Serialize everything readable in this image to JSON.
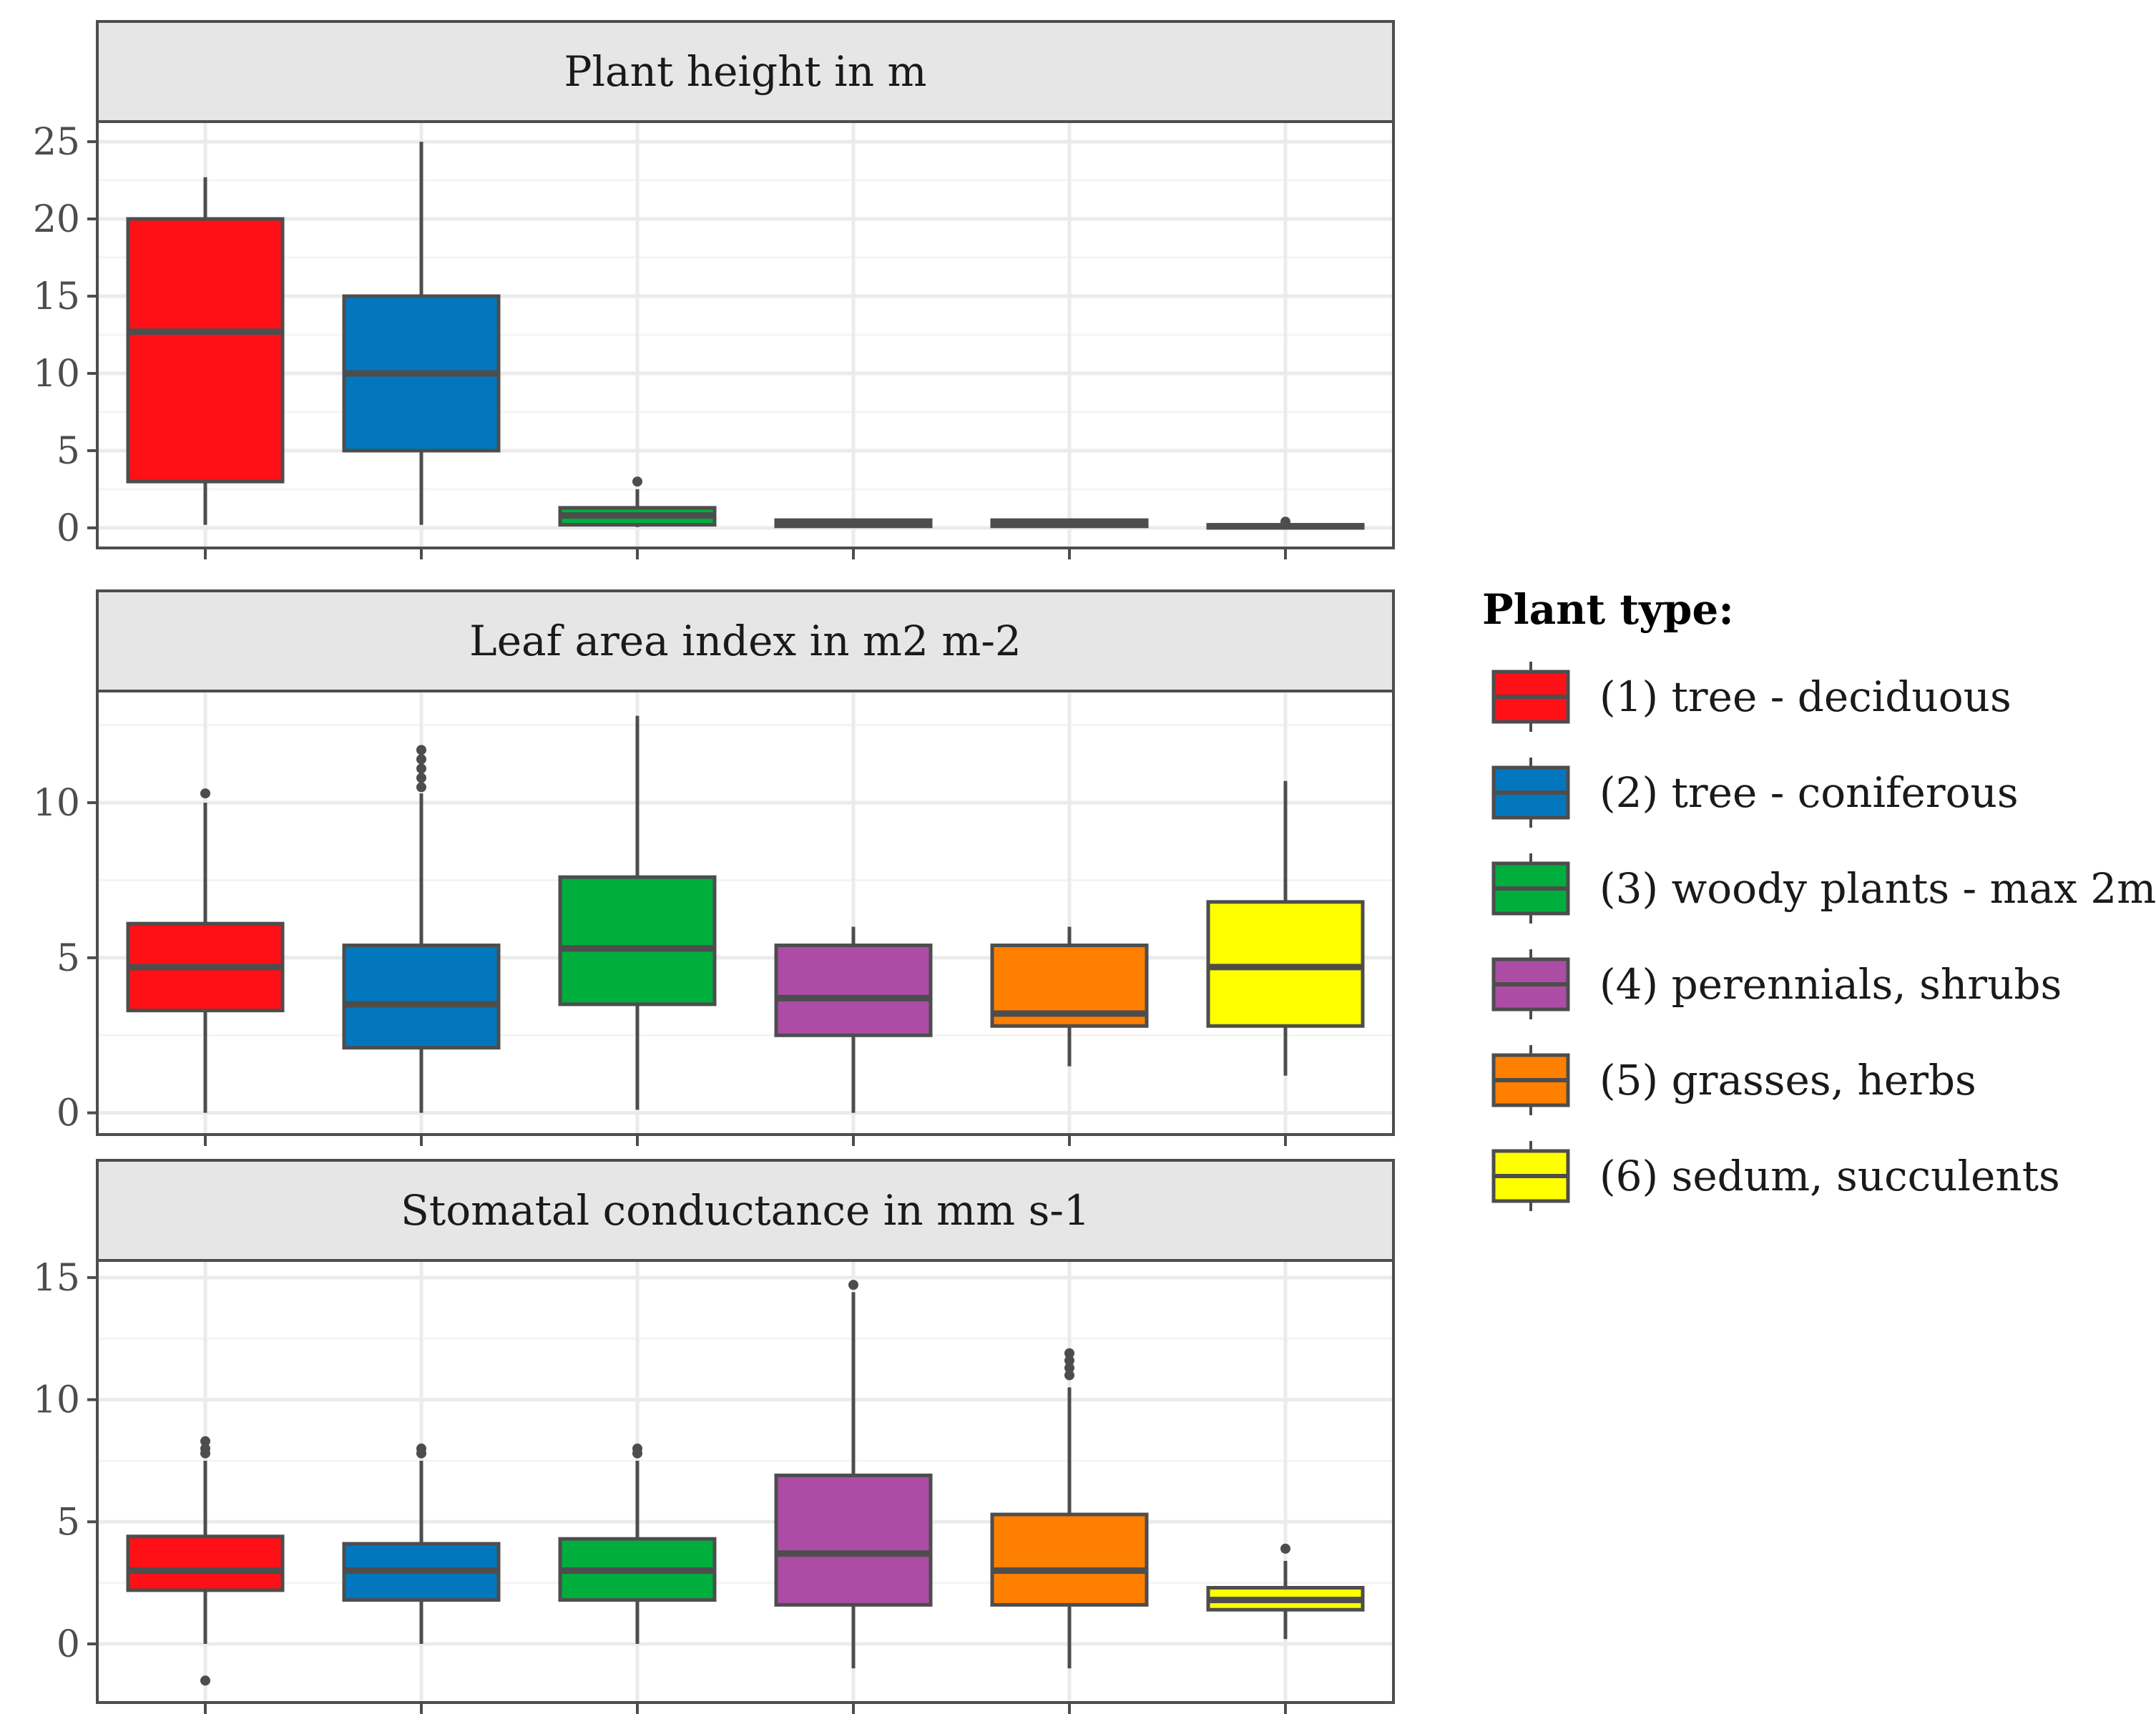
{
  "chart_data": {
    "type": "boxplot",
    "categories": [
      "(1) tree - deciduous",
      "(2) tree - coniferous",
      "(3) woody plants - max 2m",
      "(4) perennials, shrubs",
      "(5) grasses, herbs",
      "(6) sedum, succulents"
    ],
    "colors": [
      "#ff1016",
      "#0377bd",
      "#00ae3e",
      "#ac4ca5",
      "#ff7f00",
      "#ffff00"
    ],
    "legend": {
      "title": "Plant type:",
      "position": "right",
      "entries": [
        "(1) tree - deciduous",
        "(2) tree - coniferous",
        "(3) woody plants - max 2m",
        "(4) perennials, shrubs",
        "(5) grasses, herbs",
        "(6) sedum, succulents"
      ]
    },
    "panels": [
      {
        "title": "Plant height in m",
        "ylim": [
          -1.3,
          26.3
        ],
        "yticks": [
          0,
          5,
          10,
          15,
          20,
          25
        ],
        "boxes": [
          {
            "min": 0.2,
            "q1": 3,
            "median": 12.7,
            "q3": 20,
            "max": 22.7,
            "outliers": []
          },
          {
            "min": 0.2,
            "q1": 5,
            "median": 10,
            "q3": 15,
            "max": 25,
            "outliers": []
          },
          {
            "min": 0.05,
            "q1": 0.2,
            "median": 0.8,
            "q3": 1.3,
            "max": 2.5,
            "outliers": [
              3
            ]
          },
          {
            "min": 0.05,
            "q1": 0.1,
            "median": 0.3,
            "q3": 0.5,
            "max": 0.6,
            "outliers": []
          },
          {
            "min": 0.05,
            "q1": 0.1,
            "median": 0.3,
            "q3": 0.5,
            "max": 0.6,
            "outliers": []
          },
          {
            "min": 0.0,
            "q1": 0.0,
            "median": 0.1,
            "q3": 0.2,
            "max": 0.3,
            "outliers": [
              0.4
            ]
          }
        ]
      },
      {
        "title": "Leaf area index in m2 m-2",
        "ylim": [
          -0.7,
          13.6
        ],
        "yticks": [
          0,
          5,
          10
        ],
        "boxes": [
          {
            "min": 0,
            "q1": 3.3,
            "median": 4.7,
            "q3": 6.1,
            "max": 10,
            "outliers": [
              10.3
            ]
          },
          {
            "min": 0,
            "q1": 2.1,
            "median": 3.5,
            "q3": 5.4,
            "max": 10.3,
            "outliers": [
              10.5,
              10.8,
              11.1,
              11.4,
              11.7
            ]
          },
          {
            "min": 0.1,
            "q1": 3.5,
            "median": 5.3,
            "q3": 7.6,
            "max": 12.8,
            "outliers": []
          },
          {
            "min": 0,
            "q1": 2.5,
            "median": 3.7,
            "q3": 5.4,
            "max": 6,
            "outliers": []
          },
          {
            "min": 1.5,
            "q1": 2.8,
            "median": 3.2,
            "q3": 5.4,
            "max": 6,
            "outliers": []
          },
          {
            "min": 1.2,
            "q1": 2.8,
            "median": 4.7,
            "q3": 6.8,
            "max": 10.7,
            "outliers": []
          }
        ]
      },
      {
        "title": "Stomatal conductance in mm s-1",
        "ylim": [
          -2.4,
          15.7
        ],
        "yticks": [
          0,
          5,
          10,
          15
        ],
        "boxes": [
          {
            "min": 0,
            "q1": 2.2,
            "median": 3,
            "q3": 4.4,
            "max": 7.5,
            "outliers": [
              -1.5,
              7.8,
              8.0,
              8.3
            ]
          },
          {
            "min": 0,
            "q1": 1.8,
            "median": 3,
            "q3": 4.1,
            "max": 7.5,
            "outliers": [
              7.8,
              8.0
            ]
          },
          {
            "min": 0,
            "q1": 1.8,
            "median": 3,
            "q3": 4.3,
            "max": 7.5,
            "outliers": [
              7.8,
              8.0
            ]
          },
          {
            "min": -1,
            "q1": 1.6,
            "median": 3.7,
            "q3": 6.9,
            "max": 14.4,
            "outliers": [
              14.7
            ]
          },
          {
            "min": -1,
            "q1": 1.6,
            "median": 3,
            "q3": 5.3,
            "max": 10.5,
            "outliers": [
              11.0,
              11.3,
              11.6,
              11.9
            ]
          },
          {
            "min": 0.2,
            "q1": 1.4,
            "median": 1.8,
            "q3": 2.3,
            "max": 3.4,
            "outliers": [
              3.9
            ]
          }
        ]
      }
    ]
  }
}
